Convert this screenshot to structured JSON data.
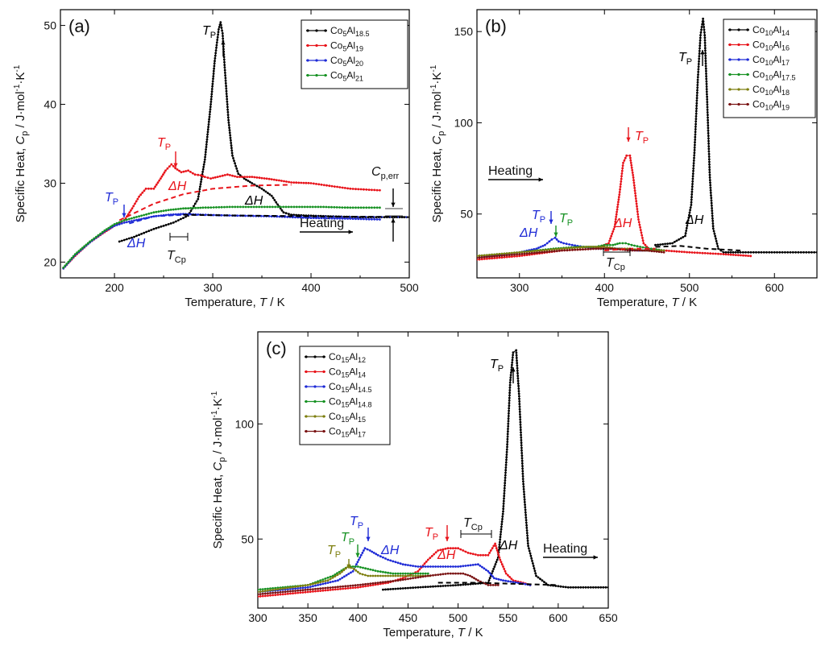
{
  "chart_data": [
    {
      "type": "line",
      "panel_label": "(a)",
      "xlabel": "Temperature, T / K",
      "ylabel": "Specific Heat, Cp / J·mol⁻¹·K⁻¹",
      "xlim": [
        145,
        500
      ],
      "ylim": [
        18,
        52
      ],
      "xticks": [
        200,
        300,
        400,
        500
      ],
      "yticks": [
        20,
        30,
        40,
        50
      ],
      "legend_position": "top-right",
      "series": [
        {
          "name": "Co5Al18.5",
          "color": "#000000",
          "x": [
            205,
            220,
            240,
            260,
            275,
            285,
            292,
            298,
            302,
            306,
            308,
            310,
            312,
            316,
            320,
            326,
            332,
            340,
            350,
            360,
            366,
            372,
            380,
            395,
            420,
            450,
            480,
            500
          ],
          "y": [
            22.6,
            23.2,
            24.2,
            25.0,
            25.9,
            28.0,
            33.0,
            40.0,
            45.5,
            49.5,
            50.4,
            49.0,
            45.0,
            38.0,
            33.5,
            31.2,
            30.6,
            30.0,
            29.3,
            28.4,
            27.3,
            26.3,
            26.0,
            25.9,
            25.8,
            25.7,
            25.7,
            25.7
          ]
        },
        {
          "name": "Co5Al19",
          "color": "#e8141b",
          "x": [
            148,
            160,
            175,
            190,
            200,
            210,
            218,
            225,
            232,
            240,
            247,
            252,
            258,
            262,
            268,
            275,
            282,
            288,
            292,
            298,
            305,
            315,
            325,
            340,
            360,
            380,
            400,
            440,
            470
          ],
          "y": [
            19.2,
            20.8,
            22.5,
            23.8,
            24.6,
            25.3,
            26.8,
            28.3,
            29.3,
            29.3,
            30.6,
            31.6,
            32.4,
            31.9,
            31.4,
            31.6,
            31.1,
            31.0,
            30.8,
            30.6,
            30.8,
            31.1,
            30.8,
            30.8,
            30.5,
            30.1,
            30.0,
            29.3,
            29.1
          ]
        },
        {
          "name": "Co5Al20",
          "color": "#1f2bd6",
          "x": [
            148,
            160,
            175,
            190,
            200,
            210,
            225,
            240,
            255,
            270,
            290,
            320,
            360,
            400,
            440,
            470
          ],
          "y": [
            19.2,
            20.9,
            22.5,
            23.9,
            24.6,
            25.0,
            25.4,
            25.8,
            26.0,
            26.1,
            26.0,
            25.9,
            25.8,
            25.6,
            25.5,
            25.4
          ]
        },
        {
          "name": "Co5Al21",
          "color": "#189224",
          "x": [
            148,
            160,
            175,
            190,
            200,
            210,
            225,
            240,
            255,
            270,
            290,
            320,
            350,
            380,
            410,
            440,
            470
          ],
          "y": [
            19.3,
            21.0,
            22.6,
            24.0,
            24.8,
            25.3,
            25.8,
            26.3,
            26.6,
            26.8,
            26.9,
            27.0,
            27.0,
            27.0,
            27.0,
            26.9,
            26.9
          ]
        }
      ]
    },
    {
      "type": "line",
      "panel_label": "(b)",
      "xlabel": "Temperature, T / K",
      "ylabel": "Specific Heat, Cp / J·mol⁻¹·K⁻¹",
      "xlim": [
        250,
        650
      ],
      "ylim": [
        15,
        162
      ],
      "xticks": [
        300,
        400,
        500,
        600
      ],
      "yticks": [
        50,
        100,
        150
      ],
      "legend_position": "top-right",
      "series": [
        {
          "name": "Co10Al14",
          "color": "#000000",
          "x": [
            460,
            480,
            495,
            502,
            506,
            510,
            513,
            516,
            518,
            521,
            524,
            528,
            534,
            540,
            560,
            600,
            650
          ],
          "y": [
            33,
            34,
            38,
            55,
            85,
            125,
            148,
            157,
            148,
            110,
            70,
            42,
            31,
            29,
            29,
            29,
            29
          ]
        },
        {
          "name": "Co10Al16",
          "color": "#e8141b",
          "x": [
            250,
            300,
            350,
            390,
            405,
            412,
            418,
            422,
            426,
            430,
            434,
            440,
            446,
            452,
            470,
            500,
            540,
            572
          ],
          "y": [
            25,
            27,
            30,
            31,
            34,
            43,
            62,
            78,
            82,
            82,
            70,
            47,
            34,
            31,
            30,
            29,
            28,
            27
          ]
        },
        {
          "name": "Co10Al17",
          "color": "#1f2bd6",
          "x": [
            250,
            300,
            320,
            330,
            338,
            342,
            346,
            352,
            362,
            375,
            390,
            405,
            420,
            440,
            460,
            470
          ],
          "y": [
            26,
            29,
            31,
            33,
            36,
            37,
            35,
            34,
            33,
            32,
            31,
            31,
            31,
            30,
            30,
            30
          ]
        },
        {
          "name": "Co10Al17.5",
          "color": "#189224",
          "x": [
            250,
            300,
            340,
            370,
            390,
            400,
            410,
            418,
            425,
            432,
            442,
            455,
            470
          ],
          "y": [
            27,
            29,
            31,
            32,
            32,
            33,
            33,
            34,
            34,
            33,
            32,
            31,
            30
          ]
        },
        {
          "name": "Co10Al18",
          "color": "#7e7f10",
          "x": [
            250,
            300,
            350,
            380,
            400,
            415,
            430,
            445,
            460,
            470
          ],
          "y": [
            27,
            29,
            31,
            32,
            32,
            31,
            31,
            30,
            30,
            30
          ]
        },
        {
          "name": "Co10Al19",
          "color": "#7a1414",
          "x": [
            250,
            300,
            350,
            390,
            410,
            430,
            450,
            470
          ],
          "y": [
            26,
            28,
            30,
            31,
            31,
            30,
            30,
            29
          ]
        }
      ]
    },
    {
      "type": "line",
      "panel_label": "(c)",
      "xlabel": "Temperature, T / K",
      "ylabel": "Specific Heat, Cp / J·mol⁻¹·K⁻¹",
      "xlim": [
        300,
        650
      ],
      "ylim": [
        20,
        140
      ],
      "xticks": [
        300,
        350,
        400,
        450,
        500,
        550,
        600,
        650
      ],
      "yticks": [
        50,
        100
      ],
      "legend_position": "top-left",
      "series": [
        {
          "name": "Co15Al12",
          "color": "#000000",
          "x": [
            425,
            460,
            500,
            530,
            540,
            545,
            549,
            552,
            555,
            558,
            561,
            565,
            570,
            578,
            590,
            610,
            650
          ],
          "y": [
            28,
            29,
            30,
            31,
            42,
            62,
            90,
            118,
            131,
            132,
            112,
            75,
            47,
            34,
            30,
            29,
            29
          ]
        },
        {
          "name": "Co15Al14",
          "color": "#e8141b",
          "x": [
            300,
            350,
            400,
            430,
            445,
            460,
            470,
            480,
            490,
            500,
            510,
            520,
            530,
            537,
            542,
            548,
            555,
            565,
            572
          ],
          "y": [
            25,
            27,
            29,
            31,
            33,
            36,
            41,
            45,
            46,
            46,
            44,
            43,
            43,
            48,
            41,
            35,
            32,
            31,
            30
          ]
        },
        {
          "name": "Co15Al14.5",
          "color": "#1f2bd6",
          "x": [
            300,
            350,
            380,
            395,
            402,
            407,
            412,
            420,
            430,
            445,
            460,
            480,
            500,
            520,
            530,
            536,
            545,
            560,
            572
          ],
          "y": [
            27,
            29,
            32,
            36,
            42,
            46,
            45,
            43,
            41,
            39,
            38,
            38,
            38,
            39,
            36,
            33,
            32,
            31,
            30
          ]
        },
        {
          "name": "Co15Al14.8",
          "color": "#189224",
          "x": [
            300,
            350,
            375,
            390,
            400,
            410,
            420,
            435,
            450,
            465,
            470
          ],
          "y": [
            28,
            30,
            34,
            38,
            38,
            37,
            36,
            35,
            35,
            35,
            35
          ]
        },
        {
          "name": "Co15Al15",
          "color": "#7e7f10",
          "x": [
            300,
            350,
            370,
            382,
            390,
            396,
            402,
            410,
            420,
            440,
            460,
            472
          ],
          "y": [
            27,
            30,
            32,
            35,
            38,
            37,
            35,
            34,
            34,
            34,
            34,
            34
          ]
        },
        {
          "name": "Co15Al17",
          "color": "#7a1414",
          "x": [
            300,
            350,
            400,
            440,
            470,
            490,
            505,
            512,
            520,
            530,
            540
          ],
          "y": [
            26,
            28,
            30,
            32,
            34,
            35,
            35,
            34,
            32,
            30,
            30
          ]
        }
      ]
    }
  ],
  "labels": {
    "tp": "T",
    "tp_sub": "P",
    "dh": "ΔH",
    "tcp": "T",
    "tcp_sub": "Cp",
    "heating": "Heating",
    "cperr": "C",
    "cperr_sub": "p,err",
    "panel_a": "(a)",
    "panel_b": "(b)",
    "panel_c": "(c)",
    "xlabel_prefix": "Temperature, ",
    "xlabel_var": "T",
    "xlabel_unit": " / K",
    "ylabel_prefix": "Specific Heat, ",
    "ylabel_var": "C",
    "ylabel_sub": "p",
    "ylabel_unit": " / J·mol",
    "ylabel_exp": "-1",
    "ylabel_k": "·K",
    "ylabel_exp2": "-1"
  },
  "legend_a": [
    {
      "base": "Co",
      "sub1": "5",
      "mid": "Al",
      "sub2": "18.5",
      "color": "#000000"
    },
    {
      "base": "Co",
      "sub1": "5",
      "mid": "Al",
      "sub2": "19",
      "color": "#e8141b"
    },
    {
      "base": "Co",
      "sub1": "5",
      "mid": "Al",
      "sub2": "20",
      "color": "#1f2bd6"
    },
    {
      "base": "Co",
      "sub1": "5",
      "mid": "Al",
      "sub2": "21",
      "color": "#189224"
    }
  ],
  "legend_b": [
    {
      "base": "Co",
      "sub1": "10",
      "mid": "Al",
      "sub2": "14",
      "color": "#000000"
    },
    {
      "base": "Co",
      "sub1": "10",
      "mid": "Al",
      "sub2": "16",
      "color": "#e8141b"
    },
    {
      "base": "Co",
      "sub1": "10",
      "mid": "Al",
      "sub2": "17",
      "color": "#1f2bd6"
    },
    {
      "base": "Co",
      "sub1": "10",
      "mid": "Al",
      "sub2": "17.5",
      "color": "#189224"
    },
    {
      "base": "Co",
      "sub1": "10",
      "mid": "Al",
      "sub2": "18",
      "color": "#7e7f10"
    },
    {
      "base": "Co",
      "sub1": "10",
      "mid": "Al",
      "sub2": "19",
      "color": "#7a1414"
    }
  ],
  "legend_c": [
    {
      "base": "Co",
      "sub1": "15",
      "mid": "Al",
      "sub2": "12",
      "color": "#000000"
    },
    {
      "base": "Co",
      "sub1": "15",
      "mid": "Al",
      "sub2": "14",
      "color": "#e8141b"
    },
    {
      "base": "Co",
      "sub1": "15",
      "mid": "Al",
      "sub2": "14.5",
      "color": "#1f2bd6"
    },
    {
      "base": "Co",
      "sub1": "15",
      "mid": "Al",
      "sub2": "14.8",
      "color": "#189224"
    },
    {
      "base": "Co",
      "sub1": "15",
      "mid": "Al",
      "sub2": "15",
      "color": "#7e7f10"
    },
    {
      "base": "Co",
      "sub1": "15",
      "mid": "Al",
      "sub2": "17",
      "color": "#7a1414"
    }
  ]
}
